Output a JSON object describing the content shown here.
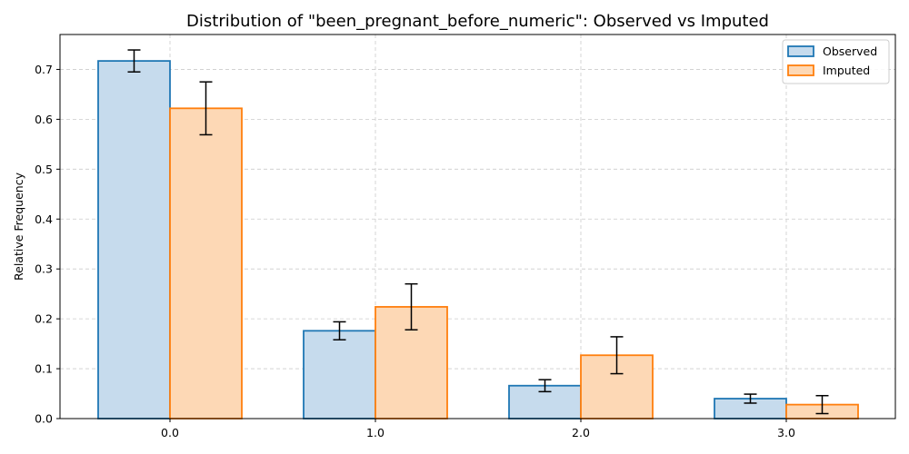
{
  "chart_data": {
    "type": "bar",
    "title": "Distribution of \"been_pregnant_before_numeric\": Observed vs Imputed",
    "xlabel": "",
    "ylabel": "Relative Frequency",
    "categories": [
      "0.0",
      "1.0",
      "2.0",
      "3.0"
    ],
    "ylim": [
      0,
      0.77
    ],
    "yticks": [
      "0.0",
      "0.1",
      "0.2",
      "0.3",
      "0.4",
      "0.5",
      "0.6",
      "0.7"
    ],
    "grid": true,
    "legend_position": "top-right",
    "series": [
      {
        "name": "Observed",
        "values": [
          0.717,
          0.176,
          0.066,
          0.04
        ],
        "errors": [
          0.022,
          0.018,
          0.012,
          0.009
        ],
        "fill": "#c6dbed",
        "edge": "#1f77b4"
      },
      {
        "name": "Imputed",
        "values": [
          0.622,
          0.224,
          0.127,
          0.028
        ],
        "errors": [
          0.053,
          0.046,
          0.037,
          0.018
        ],
        "fill": "#fdd8b5",
        "edge": "#ff7f0e"
      }
    ]
  }
}
